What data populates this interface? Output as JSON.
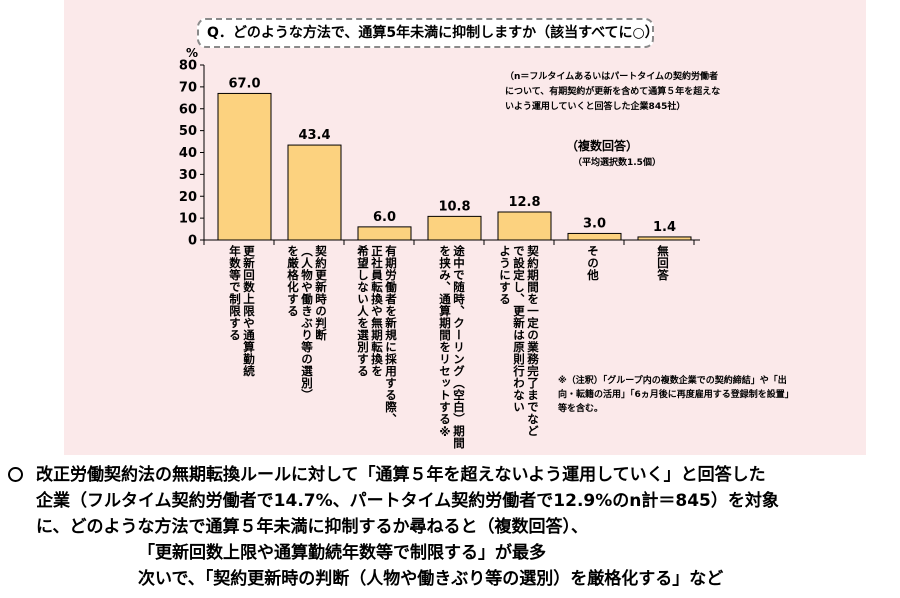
{
  "question": "Q．どのような方法で、通算5年未満に抑制しますか（該当すべてに○）。",
  "note_n": "（n＝フルタイムあるいはパートタイムの契約労働者について、有期契約が更新を含めて通算５年を超えないよう運用していくと回答した企業845社）",
  "multiple_answer": "（複数回答）",
  "avg_selections": "（平均選択数1.5個）",
  "footnote": "※（注釈）「グループ内の複数企業での契約締結」や「出向・転籍の活用」「6ヵ月後に再度雇用する登録制を設置」等を含む。",
  "colors": {
    "bar": "#fcd27f",
    "bar_border": "#000000",
    "panel": "#fbe9ea"
  },
  "chart_data": {
    "type": "bar",
    "title": "",
    "ylabel": "%",
    "ylim": [
      0,
      80
    ],
    "yticks": [
      "0",
      "10",
      "20",
      "30",
      "40",
      "50",
      "60",
      "70",
      "80"
    ],
    "categories": [
      "更新回数上限や通算勤続年数等で制限する",
      "契約更新時の判断（人物や働きぶり等の選別）を厳格化する",
      "有期労働者を新規に採用する際、正社員転換や無期転換を希望しない人を選別する",
      "途中で随時、クーリング（空白）期間を挟み、通算期間をリセットする※",
      "契約期間を一定の業務完了までなどで設定し、更新は原則行わないようにする",
      "その他",
      "無回答"
    ],
    "category_lines": [
      "更新回数上限や通算勤続\n年数等で制限する",
      "契約更新時の判断\n（人物や働きぶり等の選別）\nを厳格化する",
      "有期労働者を新規に採用する際、\n正社員転換や無期転換を\n希望しない人を選別する",
      "途中で随時、クーリング（空白）期間\nを挟み、通算期間をリセットする※",
      "契約期間を一定の業務完了までなど\nで設定し、更新は原則行わない\nようにする",
      "その他",
      "無回答"
    ],
    "values": [
      67.0,
      43.4,
      6.0,
      10.8,
      12.8,
      3.0,
      1.4
    ],
    "value_labels": [
      "67.0",
      "43.4",
      "6.0",
      "10.8",
      "12.8",
      "3.0",
      "1.4"
    ],
    "grid": false,
    "legend": "none"
  },
  "summary": {
    "bullet": "○",
    "line1": "改正労働契約法の無期転換ルールに対して「通算５年を超えないよう運用していく」と回答した",
    "line2": "企業（フルタイム契約労働者で14.7%、パートタイム契約労働者で12.9%のn計＝845）を対象",
    "line3": "に、どのような方法で通算５年未満に抑制するか尋ねると（複数回答）、",
    "line4": "「更新回数上限や通算勤続年数等で制限する」が最多",
    "line5": "次いで、「契約更新時の判断（人物や働きぶり等の選別）を厳格化する」など"
  }
}
